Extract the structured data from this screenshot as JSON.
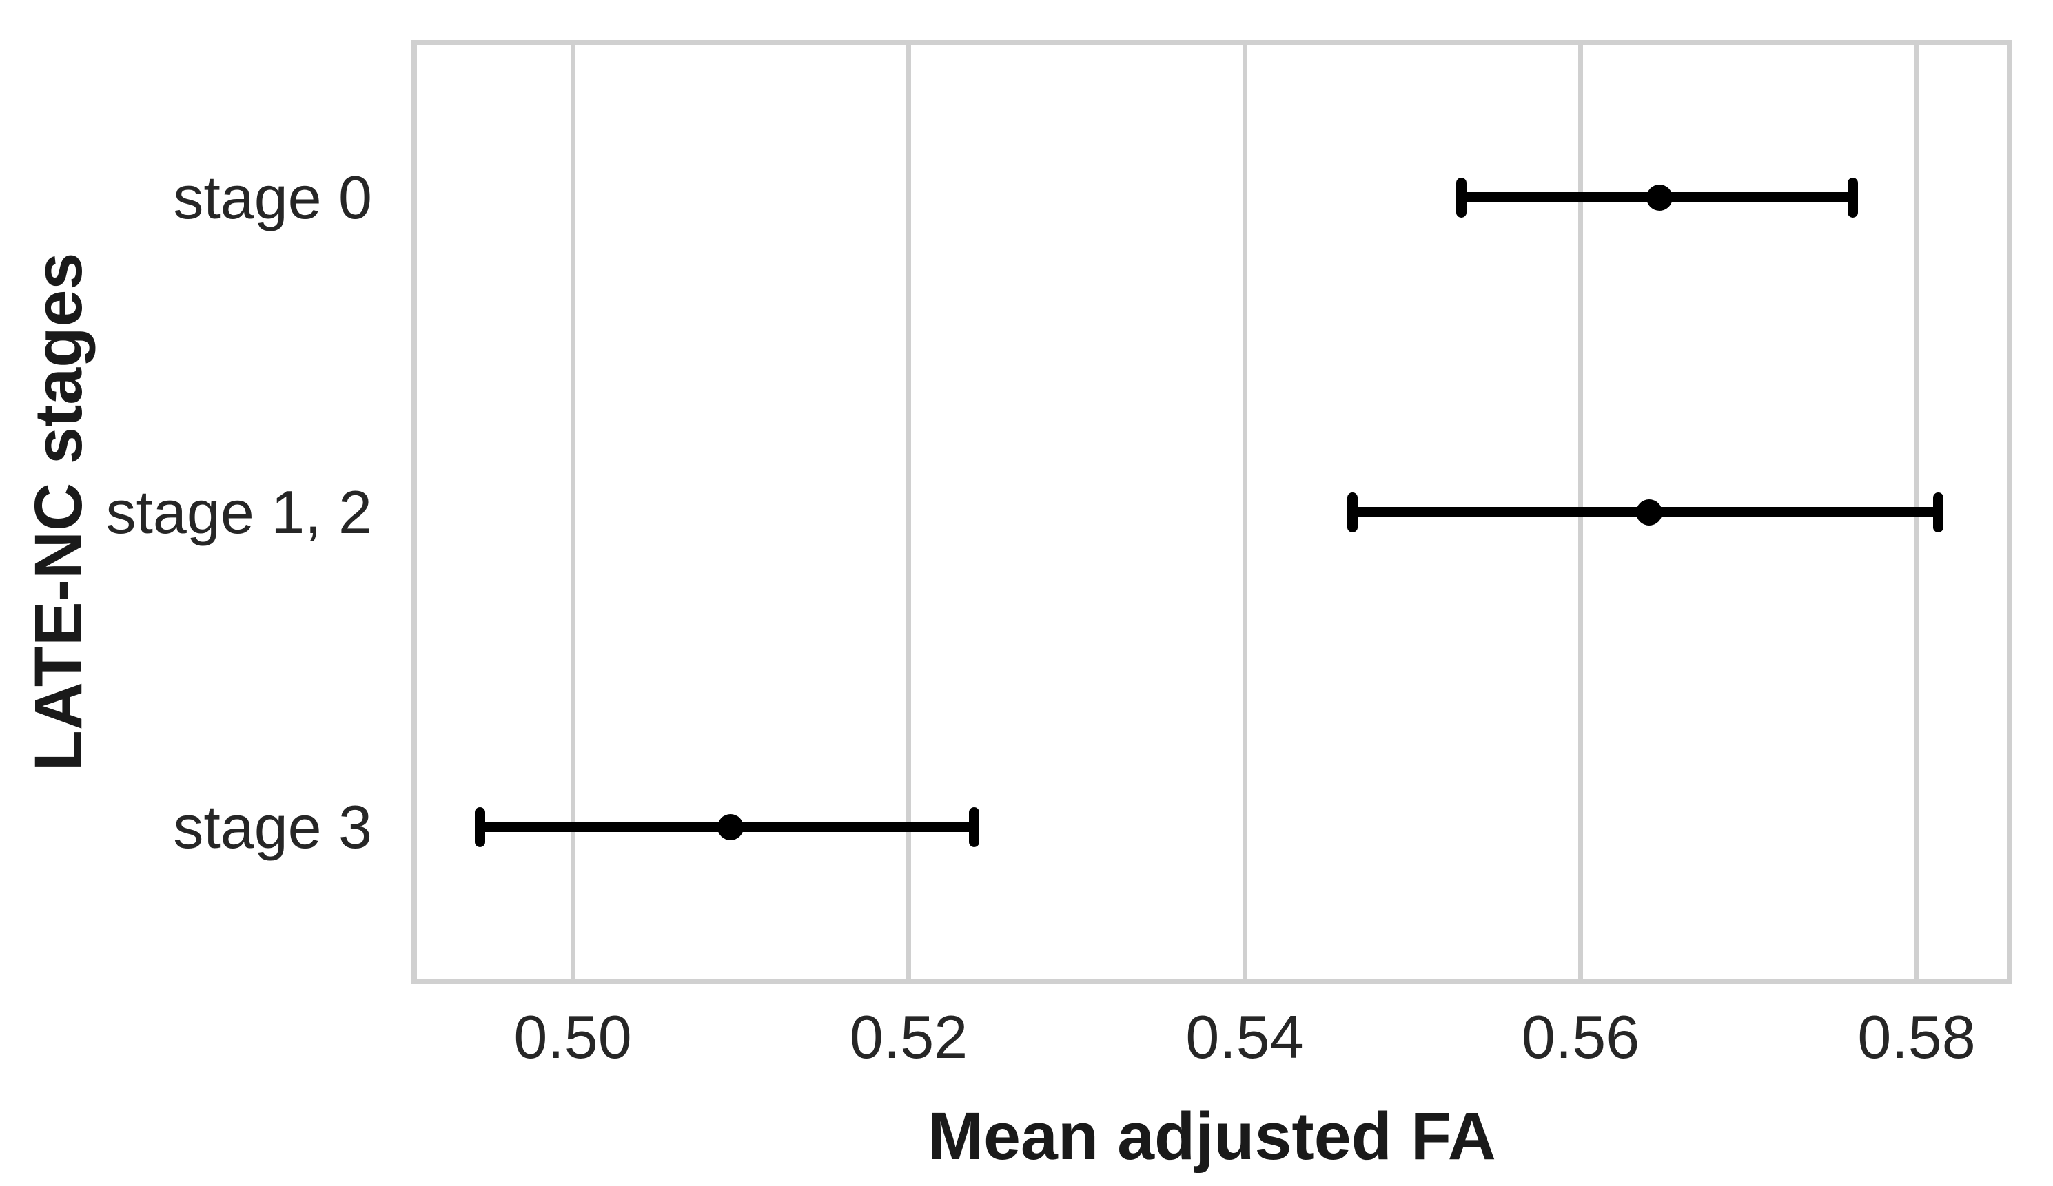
{
  "figure": {
    "background": "#ffffff",
    "grid_color": "#d0d0d0",
    "marker_color": "#000000",
    "tick_text_color": "#262626",
    "axis_label_color": "#1a1a1a"
  },
  "chart_data": {
    "type": "scatter",
    "subtype": "point-estimates-with-horizontal-error-bars",
    "orientation": "horizontal",
    "title": "",
    "xlabel": "Mean adjusted FA",
    "ylabel": "LATE-NC stages",
    "categories": [
      "stage 0",
      "stage 1, 2",
      "stage 3"
    ],
    "series": [
      {
        "name": "Mean adjusted FA",
        "means": [
          0.5647,
          0.5641,
          0.5094
        ],
        "ci_low": [
          0.5529,
          0.5464,
          0.4945
        ],
        "ci_high": [
          0.5762,
          0.5813,
          0.5239
        ]
      }
    ],
    "x_ticks": [
      "0.50",
      "0.52",
      "0.54",
      "0.56",
      "0.58"
    ],
    "x_tick_values": [
      0.5,
      0.52,
      0.54,
      0.56,
      0.58
    ],
    "xlim": [
      0.4904,
      0.5857
    ],
    "grid": "vertical-only",
    "legend": "none",
    "marker": "filled black circle, black error bar line with rounded end caps"
  }
}
